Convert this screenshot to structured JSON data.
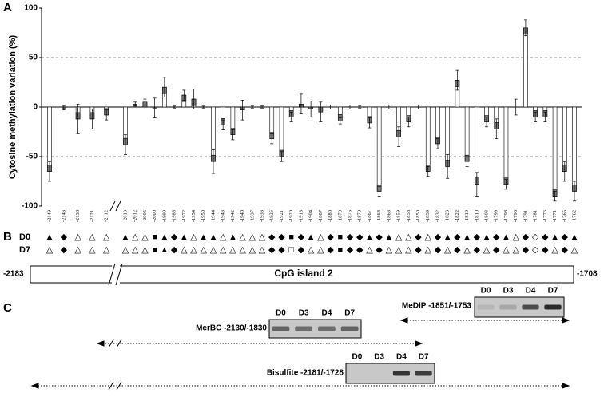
{
  "chart_data": {
    "type": "bar",
    "panel_label": "A",
    "ylabel": "Cytosine methylation variation (%)",
    "ylim": [
      -100,
      100
    ],
    "yticks": [
      -100,
      -50,
      0,
      50,
      100
    ],
    "grid": true,
    "color": "#ffffff",
    "marker_color": "#777777",
    "categories": [
      "-2149",
      "-2143",
      "-2138",
      "-2121",
      "-2112",
      "-2013",
      "-2012",
      "-2005",
      "-2000",
      "-1990",
      "-1986",
      "-1972",
      "-1954",
      "-1950",
      "-1944",
      "-1943",
      "-1942",
      "-1940",
      "-1937",
      "-1933",
      "-1926",
      "-1921",
      "-1920",
      "-1913",
      "-1904",
      "-1887",
      "-1880",
      "-1879",
      "-1875",
      "-1870",
      "-1867",
      "-1864",
      "-1863",
      "-1859",
      "-1858",
      "-1850",
      "-1839",
      "-1832",
      "-1823",
      "-1822",
      "-1819",
      "-1810",
      "-1803",
      "-1799",
      "-1798",
      "-1793",
      "-1791",
      "-1781",
      "-1776",
      "-1771",
      "-1765",
      "-1762"
    ],
    "values": [
      -65,
      -1,
      -12,
      -12,
      -8,
      -38,
      3,
      5,
      -1,
      20,
      0,
      12,
      8,
      0,
      -55,
      -18,
      -28,
      -3,
      0,
      0,
      -32,
      -50,
      -10,
      3,
      -2,
      -5,
      0,
      -14,
      0,
      0,
      -16,
      -85,
      0,
      -30,
      -15,
      0,
      -65,
      -37,
      -60,
      27,
      -55,
      -78,
      -15,
      -22,
      -78,
      0,
      80,
      -10,
      -10,
      -90,
      -65,
      -85
    ],
    "errors": [
      10,
      2,
      15,
      10,
      5,
      10,
      2,
      3,
      10,
      10,
      1,
      5,
      10,
      1,
      12,
      5,
      5,
      10,
      1,
      1,
      5,
      5,
      5,
      10,
      8,
      10,
      2,
      3,
      2,
      1,
      5,
      5,
      2,
      10,
      5,
      2,
      5,
      5,
      12,
      10,
      5,
      12,
      5,
      10,
      5,
      8,
      8,
      5,
      5,
      5,
      10,
      10
    ]
  },
  "cpg_status": {
    "panel_label": "B",
    "rows": [
      {
        "label": "D0",
        "symbols": [
          "▲",
          "◆",
          "△",
          "△",
          "△",
          "▲",
          "△",
          "△",
          "■",
          "▲",
          "◆",
          "▲",
          "△",
          "▲",
          "▲",
          "△",
          "▲",
          "△",
          "△",
          "△",
          "◆",
          "◆",
          "■",
          "◆",
          "▲",
          "△",
          "◆",
          "■",
          "◆",
          "◆",
          "▲",
          "◆",
          "▲",
          "△",
          "△",
          "◆",
          "△",
          "◆",
          "▲",
          "◆",
          "▲",
          "◆",
          "▲",
          "◆",
          "▲",
          "△",
          "◆",
          "◇",
          "◆",
          "▲",
          "◆",
          "▲"
        ]
      },
      {
        "label": "D7",
        "symbols": [
          "△",
          "◆",
          "△",
          "△",
          "△",
          "△",
          "△",
          "△",
          "■",
          "▲",
          "◆",
          "△",
          "△",
          "△",
          "△",
          "△",
          "△",
          "△",
          "△",
          "△",
          "◆",
          "◆",
          "□",
          "◆",
          "△",
          "△",
          "◆",
          "■",
          "◆",
          "◆",
          "△",
          "◆",
          "△",
          "△",
          "△",
          "◆",
          "△",
          "◆",
          "△",
          "◆",
          "△",
          "◆",
          "△",
          "◆",
          "△",
          "△",
          "◆",
          "◇",
          "◆",
          "△",
          "◆",
          "△"
        ]
      }
    ]
  },
  "cpg_island": {
    "start": "-2183",
    "name": "CpG island 2",
    "end": "-1708"
  },
  "assays": {
    "panel_label": "C",
    "items": [
      {
        "label": "MeDIP -1851/-1753",
        "lanes": [
          "D0",
          "D3",
          "D4",
          "D7"
        ]
      },
      {
        "label": "McrBC -2130/-1830",
        "lanes": [
          "D0",
          "D3",
          "D4",
          "D7"
        ]
      },
      {
        "label": "Bisulfite -2181/-1728",
        "lanes": [
          "D0",
          "D3",
          "D4",
          "D7"
        ]
      }
    ]
  }
}
